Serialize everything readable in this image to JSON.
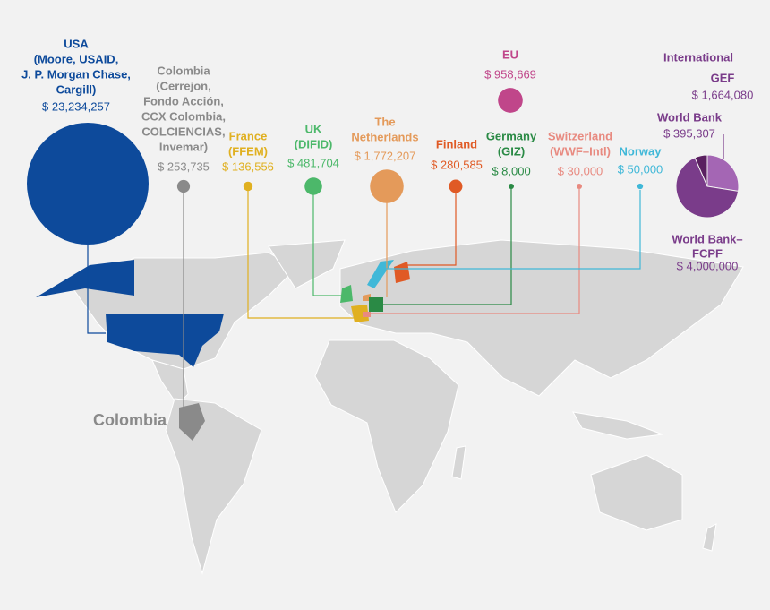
{
  "donors": [
    {
      "lines": [
        "USA",
        "(Moore, USAID,",
        "J. P. Morgan Chase,",
        "Cargill)"
      ],
      "amount": 23234257,
      "amount_label": "$ 23,234,257",
      "color": "#0d4a9b"
    },
    {
      "lines": [
        "Colombia",
        "(Cerrejon,",
        "Fondo Acción,",
        "CCX Colombia,",
        "COLCIENCIAS,",
        "Invemar)"
      ],
      "amount": 253735,
      "amount_label": "$ 253,735",
      "color": "#8a8a8a"
    },
    {
      "lines": [
        "France",
        "(FFEM)"
      ],
      "amount": 136556,
      "amount_label": "$ 136,556",
      "color": "#e0b020"
    },
    {
      "lines": [
        "UK",
        "(DIFID)"
      ],
      "amount": 481704,
      "amount_label": "$ 481,704",
      "color": "#4cb86a"
    },
    {
      "lines": [
        "The",
        "Netherlands"
      ],
      "amount": 1772207,
      "amount_label": "$ 1,772,207",
      "color": "#e49a5a"
    },
    {
      "lines": [
        "Finland"
      ],
      "amount": 280585,
      "amount_label": "$ 280,585",
      "color": "#e05a25"
    },
    {
      "lines": [
        "Germany",
        "(GIZ)"
      ],
      "amount": 8000,
      "amount_label": "$ 8,000",
      "color": "#2a8a45"
    },
    {
      "lines": [
        "Switzerland",
        "(WWF–Intl)"
      ],
      "amount": 30000,
      "amount_label": "$ 30,000",
      "color": "#e88a80"
    },
    {
      "lines": [
        "Norway"
      ],
      "amount": 50000,
      "amount_label": "$ 50,000",
      "color": "#40b8d8"
    },
    {
      "lines": [
        "EU"
      ],
      "amount": 958669,
      "amount_label": "$ 958,669",
      "color": "#c0468a"
    }
  ],
  "international": {
    "title": "International",
    "color": "#7a3c8a",
    "segments": [
      {
        "lines": [
          "GEF"
        ],
        "amount": 1664080,
        "amount_label": "$ 1,664,080",
        "color": "#a466b4"
      },
      {
        "lines": [
          "World Bank"
        ],
        "amount": 395307,
        "amount_label": "$ 395,307",
        "color": "#5a2060"
      },
      {
        "lines": [
          "World Bank–",
          "FCPF"
        ],
        "amount": 4000000,
        "amount_label": "$ 4,000,000",
        "color": "#7a3c8a"
      }
    ]
  },
  "map_label": "Colombia"
}
